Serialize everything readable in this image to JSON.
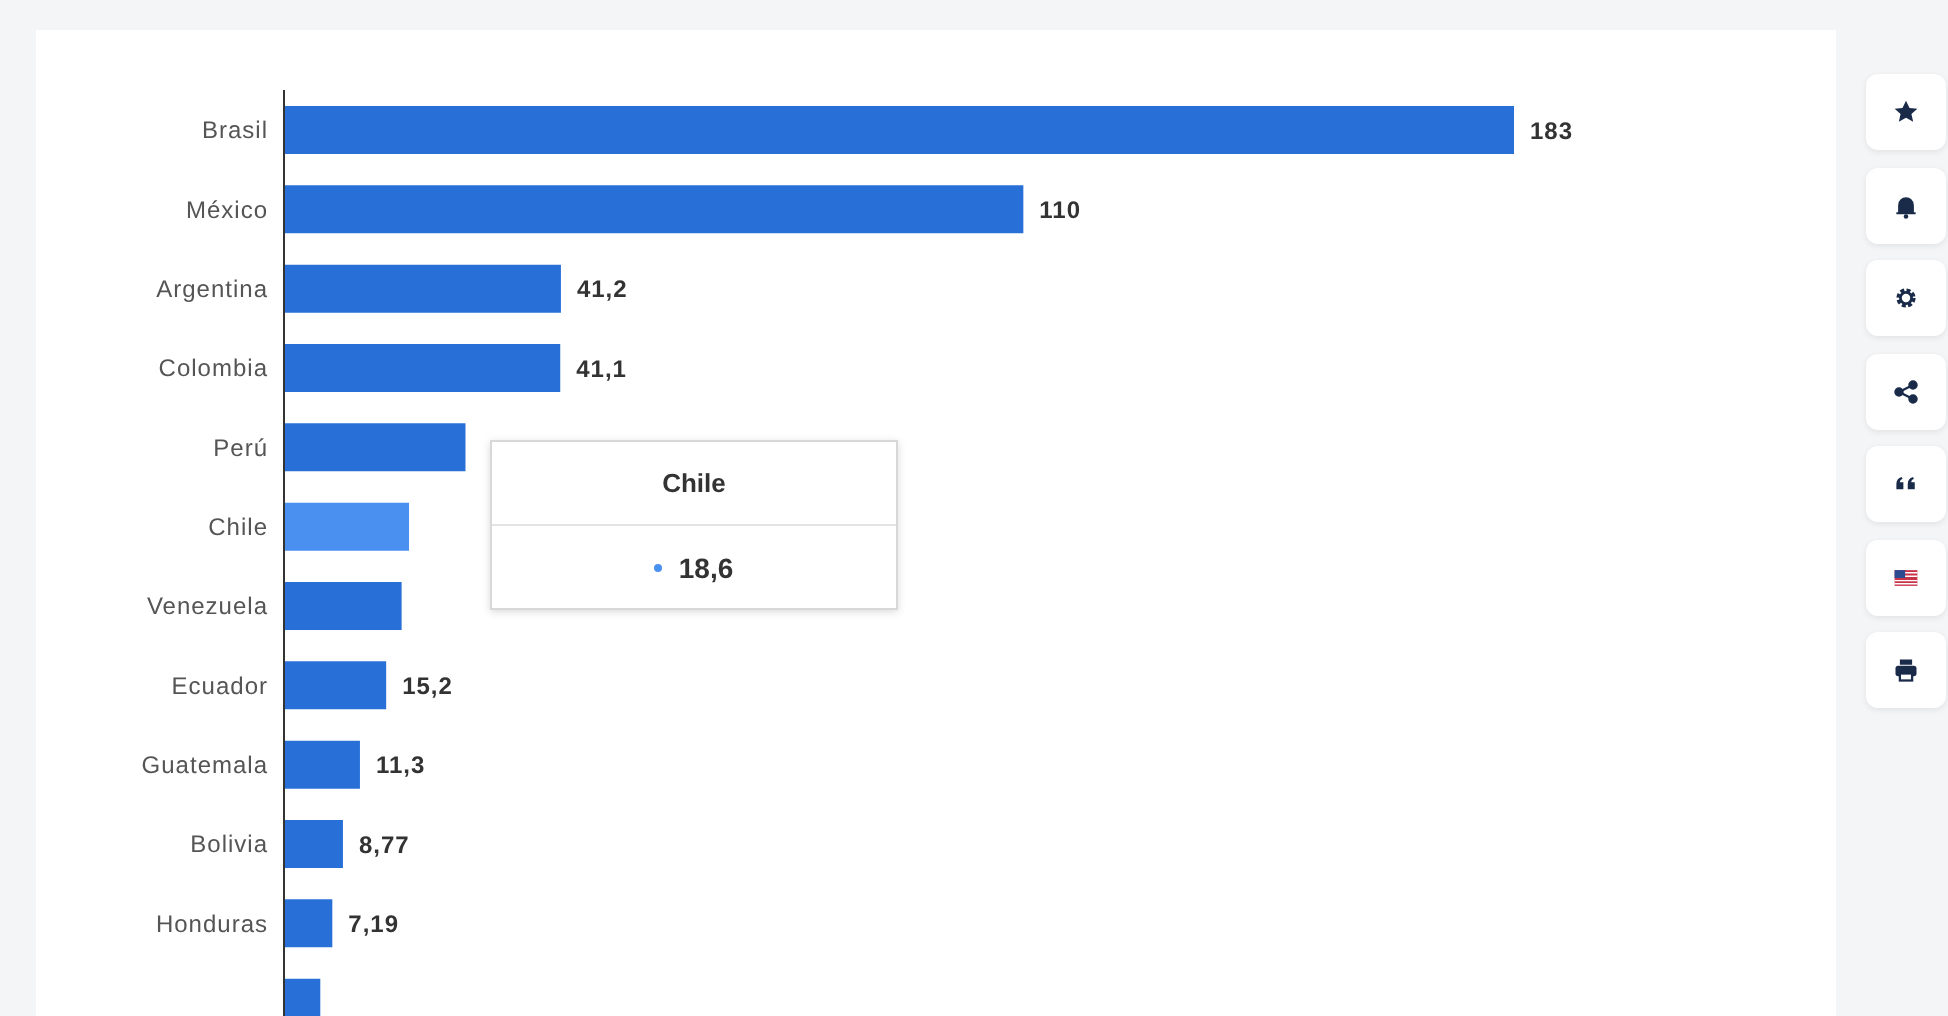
{
  "chart_data": {
    "type": "bar",
    "orientation": "horizontal",
    "categories": [
      "Brasil",
      "México",
      "Argentina",
      "Colombia",
      "Perú",
      "Chile",
      "Venezuela",
      "Ecuador",
      "Guatemala",
      "Bolivia",
      "Honduras",
      null
    ],
    "values": [
      183,
      110,
      41.2,
      41.1,
      27,
      18.6,
      17.5,
      15.2,
      11.3,
      8.77,
      7.19,
      5.4
    ],
    "colors": [
      "#2870d8",
      "#2870d8",
      "#2870d8",
      "#2870d8",
      "#2870d8",
      "#4a90f0",
      "#2870d8",
      "#2870d8",
      "#2870d8",
      "#2870d8",
      "#2870d8",
      "#2870d8"
    ],
    "value_labels": [
      "183",
      "110",
      "41,2",
      "41,1",
      null,
      null,
      null,
      "15,2",
      "11,3",
      "8,77",
      "7,19",
      null
    ],
    "tick_labels": "y",
    "legend": false,
    "annotations": [
      "Chile",
      "18,6"
    ]
  }
}
